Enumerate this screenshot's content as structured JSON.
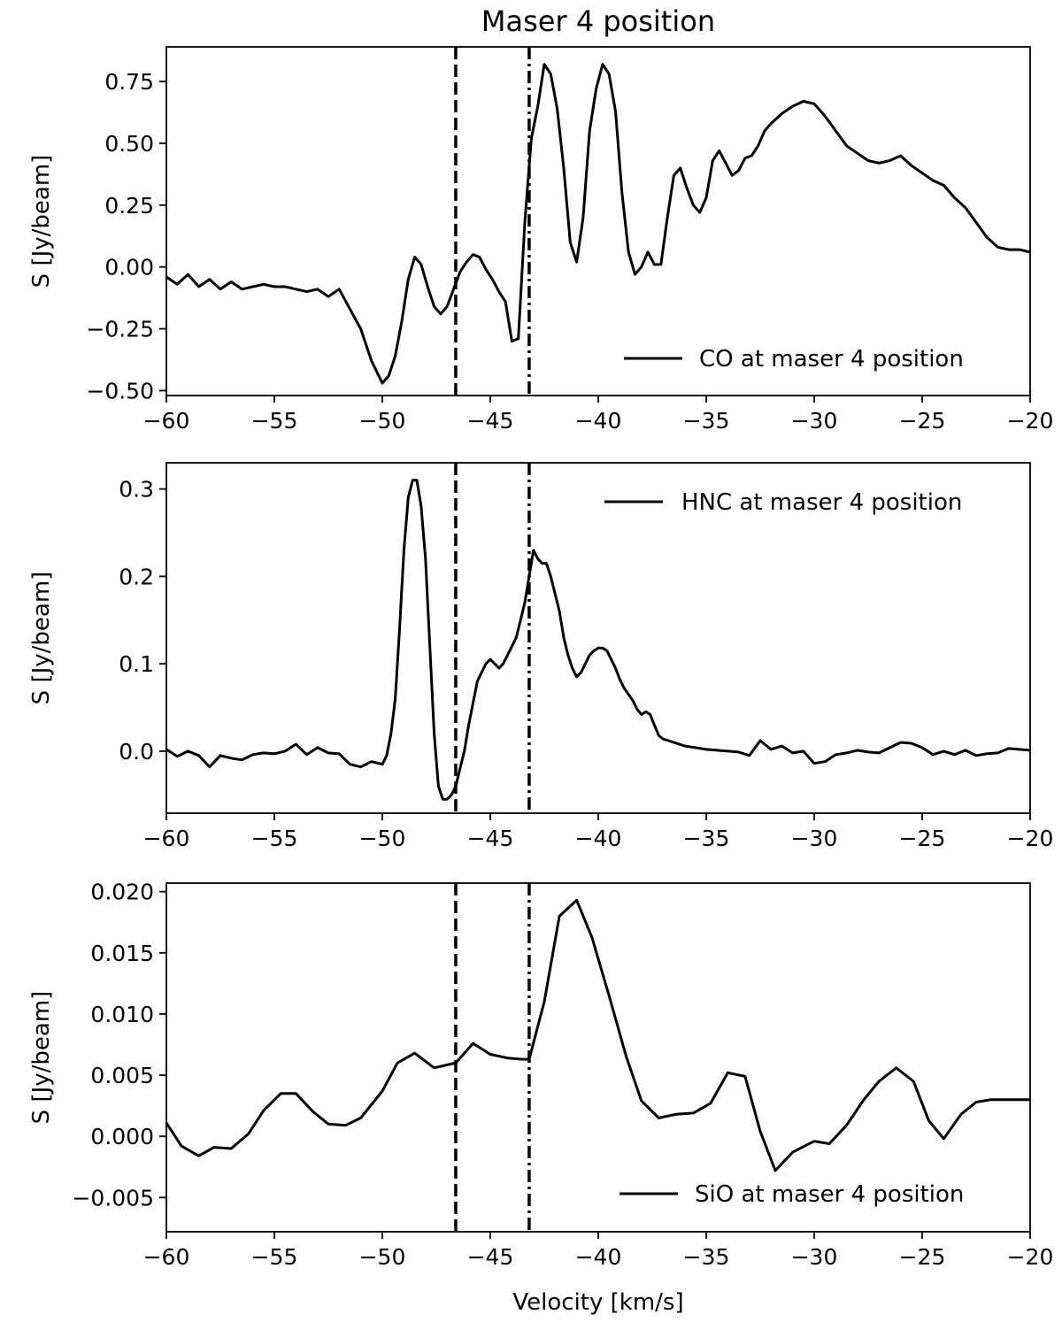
{
  "figure": {
    "title": "Maser 4 position",
    "xlabel": "Velocity [km/s]"
  },
  "chart_data": [
    {
      "type": "line",
      "panel": "top",
      "series_name": "CO at maser 4 position",
      "legend_position": "lower-right",
      "xlim": [
        -60,
        -20
      ],
      "ylim": [
        -0.52,
        0.89
      ],
      "xticks": [
        -60,
        -55,
        -50,
        -45,
        -40,
        -35,
        -30,
        -25,
        -20
      ],
      "xtick_labels": [
        "−60",
        "−55",
        "−50",
        "−45",
        "−40",
        "−35",
        "−30",
        "−25",
        "−20"
      ],
      "yticks": [
        -0.5,
        -0.25,
        0.0,
        0.25,
        0.5,
        0.75
      ],
      "ytick_labels": [
        "−0.50",
        "−0.25",
        "0.00",
        "0.25",
        "0.50",
        "0.75"
      ],
      "ylabel": "S [Jy/beam]",
      "vlines": [
        {
          "x": -46.6,
          "style": "dashed"
        },
        {
          "x": -43.2,
          "style": "dashdot"
        }
      ],
      "x": [
        -60,
        -59.5,
        -59,
        -58.5,
        -58,
        -57.5,
        -57,
        -56.5,
        -56,
        -55.5,
        -55,
        -54.5,
        -54,
        -53.5,
        -53,
        -52.5,
        -52,
        -51.5,
        -51,
        -50.5,
        -50,
        -49.7,
        -49.4,
        -49.1,
        -48.8,
        -48.5,
        -48.2,
        -47.9,
        -47.6,
        -47.3,
        -47,
        -46.7,
        -46.4,
        -46.1,
        -45.8,
        -45.5,
        -45.2,
        -44.9,
        -44.6,
        -44.3,
        -44,
        -43.7,
        -43.4,
        -43.1,
        -42.8,
        -42.5,
        -42.2,
        -41.9,
        -41.6,
        -41.3,
        -41,
        -40.7,
        -40.4,
        -40.1,
        -39.8,
        -39.5,
        -39.2,
        -38.9,
        -38.6,
        -38.3,
        -38,
        -37.7,
        -37.4,
        -37.1,
        -36.8,
        -36.5,
        -36.2,
        -35.9,
        -35.6,
        -35.3,
        -35,
        -34.7,
        -34.4,
        -34.1,
        -33.8,
        -33.5,
        -33.2,
        -32.9,
        -32.6,
        -32.3,
        -32,
        -31.5,
        -31,
        -30.5,
        -30,
        -29.5,
        -29,
        -28.5,
        -28,
        -27.5,
        -27,
        -26.5,
        -26,
        -25.5,
        -25,
        -24.5,
        -24,
        -23.5,
        -23,
        -22.5,
        -22,
        -21.5,
        -21,
        -20.5,
        -20
      ],
      "values": [
        -0.04,
        -0.07,
        -0.03,
        -0.08,
        -0.05,
        -0.09,
        -0.06,
        -0.09,
        -0.08,
        -0.07,
        -0.08,
        -0.08,
        -0.09,
        -0.1,
        -0.09,
        -0.12,
        -0.09,
        -0.17,
        -0.25,
        -0.38,
        -0.47,
        -0.44,
        -0.36,
        -0.22,
        -0.05,
        0.04,
        0.01,
        -0.08,
        -0.16,
        -0.19,
        -0.16,
        -0.09,
        -0.02,
        0.02,
        0.05,
        0.04,
        -0.01,
        -0.05,
        -0.1,
        -0.14,
        -0.3,
        -0.29,
        0.18,
        0.52,
        0.65,
        0.82,
        0.78,
        0.64,
        0.4,
        0.1,
        0.02,
        0.2,
        0.55,
        0.72,
        0.82,
        0.78,
        0.63,
        0.3,
        0.06,
        -0.03,
        0.0,
        0.06,
        0.01,
        0.01,
        0.2,
        0.37,
        0.4,
        0.32,
        0.25,
        0.22,
        0.28,
        0.43,
        0.47,
        0.42,
        0.37,
        0.39,
        0.44,
        0.45,
        0.49,
        0.55,
        0.58,
        0.62,
        0.65,
        0.67,
        0.66,
        0.61,
        0.55,
        0.49,
        0.46,
        0.43,
        0.42,
        0.43,
        0.45,
        0.41,
        0.38,
        0.35,
        0.33,
        0.28,
        0.24,
        0.18,
        0.12,
        0.08,
        0.07,
        0.07,
        0.06
      ]
    },
    {
      "type": "line",
      "panel": "middle",
      "series_name": "HNC at maser 4 position",
      "legend_position": "upper-right",
      "xlim": [
        -60,
        -20
      ],
      "ylim": [
        -0.071,
        0.33
      ],
      "xticks": [
        -60,
        -55,
        -50,
        -45,
        -40,
        -35,
        -30,
        -25,
        -20
      ],
      "xtick_labels": [
        "−60",
        "−55",
        "−50",
        "−45",
        "−40",
        "−35",
        "−30",
        "−25",
        "−20"
      ],
      "yticks": [
        0.0,
        0.1,
        0.2,
        0.3
      ],
      "ytick_labels": [
        "0.0",
        "0.1",
        "0.2",
        "0.3"
      ],
      "ylabel": "S [Jy/beam]",
      "vlines": [
        {
          "x": -46.6,
          "style": "dashed"
        },
        {
          "x": -43.2,
          "style": "dashdot"
        }
      ],
      "x": [
        -60,
        -59.5,
        -59,
        -58.5,
        -58,
        -57.5,
        -57,
        -56.5,
        -56,
        -55.5,
        -55,
        -54.5,
        -54,
        -53.5,
        -53,
        -52.5,
        -52,
        -51.5,
        -51,
        -50.5,
        -50,
        -49.8,
        -49.6,
        -49.4,
        -49.2,
        -49,
        -48.8,
        -48.6,
        -48.4,
        -48.2,
        -48,
        -47.8,
        -47.6,
        -47.4,
        -47.2,
        -47,
        -46.8,
        -46.6,
        -46.4,
        -46.2,
        -46,
        -45.8,
        -45.6,
        -45.4,
        -45.2,
        -45,
        -44.8,
        -44.6,
        -44.4,
        -44.2,
        -44,
        -43.8,
        -43.6,
        -43.4,
        -43.2,
        -43,
        -42.8,
        -42.6,
        -42.4,
        -42.2,
        -42,
        -41.8,
        -41.6,
        -41.4,
        -41.2,
        -41,
        -40.8,
        -40.6,
        -40.4,
        -40.2,
        -40,
        -39.8,
        -39.6,
        -39.4,
        -39.2,
        -39,
        -38.8,
        -38.6,
        -38.4,
        -38.2,
        -38,
        -37.8,
        -37.6,
        -37.4,
        -37.2,
        -37,
        -36.5,
        -36,
        -35.5,
        -35,
        -34.5,
        -34,
        -33.5,
        -33,
        -32.5,
        -32,
        -31.5,
        -31,
        -30.5,
        -30,
        -29.5,
        -29,
        -28.5,
        -28,
        -27.5,
        -27,
        -26.5,
        -26,
        -25.5,
        -25,
        -24.5,
        -24,
        -23.5,
        -23,
        -22.5,
        -22,
        -21.5,
        -21,
        -20.5,
        -20
      ],
      "values": [
        0.002,
        -0.006,
        0.0,
        -0.005,
        -0.018,
        -0.005,
        -0.008,
        -0.01,
        -0.004,
        -0.002,
        -0.003,
        0.0,
        0.008,
        -0.004,
        0.004,
        -0.002,
        -0.003,
        -0.015,
        -0.018,
        -0.012,
        -0.015,
        -0.005,
        0.02,
        0.06,
        0.14,
        0.23,
        0.29,
        0.31,
        0.31,
        0.28,
        0.22,
        0.12,
        0.02,
        -0.04,
        -0.055,
        -0.055,
        -0.05,
        -0.04,
        -0.02,
        0.0,
        0.03,
        0.055,
        0.08,
        0.09,
        0.1,
        0.105,
        0.1,
        0.095,
        0.1,
        0.11,
        0.12,
        0.13,
        0.15,
        0.17,
        0.2,
        0.23,
        0.22,
        0.215,
        0.215,
        0.2,
        0.18,
        0.16,
        0.13,
        0.11,
        0.095,
        0.085,
        0.09,
        0.1,
        0.11,
        0.115,
        0.118,
        0.118,
        0.115,
        0.105,
        0.095,
        0.082,
        0.072,
        0.065,
        0.058,
        0.048,
        0.042,
        0.045,
        0.042,
        0.03,
        0.018,
        0.014,
        0.01,
        0.006,
        0.004,
        0.002,
        0.001,
        0.0,
        -0.001,
        -0.005,
        0.012,
        0.002,
        0.006,
        -0.002,
        0.0,
        -0.014,
        -0.012,
        -0.004,
        -0.002,
        0.001,
        -0.001,
        -0.002,
        0.004,
        0.01,
        0.009,
        0.004,
        -0.004,
        0.0,
        -0.004,
        0.001,
        -0.005,
        -0.003,
        -0.002,
        0.003,
        0.002,
        0.001
      ]
    },
    {
      "type": "line",
      "panel": "bottom",
      "series_name": "SiO at maser 4 position",
      "legend_position": "lower-right",
      "xlim": [
        -60,
        -20
      ],
      "ylim": [
        -0.0078,
        0.0207
      ],
      "xticks": [
        -60,
        -55,
        -50,
        -45,
        -40,
        -35,
        -30,
        -25,
        -20
      ],
      "xtick_labels": [
        "−60",
        "−55",
        "−50",
        "−45",
        "−40",
        "−35",
        "−30",
        "−25",
        "−20"
      ],
      "yticks": [
        -0.005,
        0.0,
        0.005,
        0.01,
        0.015,
        0.02
      ],
      "ytick_labels": [
        "−0.005",
        "0.000",
        "0.005",
        "0.010",
        "0.015",
        "0.020"
      ],
      "ylabel": "S [Jy/beam]",
      "vlines": [
        {
          "x": -46.6,
          "style": "dashed"
        },
        {
          "x": -43.2,
          "style": "dashdot"
        }
      ],
      "x": [
        -60,
        -59.3,
        -58.5,
        -57.8,
        -57,
        -56.2,
        -55.5,
        -54.7,
        -54,
        -53.2,
        -52.5,
        -51.7,
        -51,
        -50,
        -49.3,
        -48.5,
        -47.6,
        -46.6,
        -45.8,
        -45,
        -44.2,
        -43.5,
        -43.2,
        -42.5,
        -41.8,
        -41.0,
        -40.3,
        -39.5,
        -38.7,
        -38.0,
        -37.2,
        -36.4,
        -35.6,
        -34.8,
        -34.0,
        -33.2,
        -32.5,
        -31.8,
        -31.0,
        -30.0,
        -29.3,
        -28.5,
        -27.7,
        -27.0,
        -26.2,
        -25.4,
        -24.7,
        -24.0,
        -23.2,
        -22.5,
        -21.8,
        -21.0,
        -20.3,
        -20.0
      ],
      "values": [
        0.0011,
        -0.0008,
        -0.0016,
        -0.0009,
        -0.001,
        0.0002,
        0.0021,
        0.0035,
        0.0035,
        0.002,
        0.001,
        0.0009,
        0.0015,
        0.0037,
        0.006,
        0.0068,
        0.0056,
        0.006,
        0.0076,
        0.0067,
        0.0064,
        0.0063,
        0.0063,
        0.011,
        0.018,
        0.0193,
        0.0163,
        0.0115,
        0.0065,
        0.0029,
        0.0015,
        0.0018,
        0.0019,
        0.0027,
        0.0052,
        0.0049,
        0.0004,
        -0.0028,
        -0.0013,
        -0.0004,
        -0.0006,
        0.0009,
        0.003,
        0.0045,
        0.0056,
        0.0045,
        0.0013,
        -0.0002,
        0.0018,
        0.0028,
        0.003,
        0.003,
        0.003,
        0.003
      ]
    }
  ]
}
